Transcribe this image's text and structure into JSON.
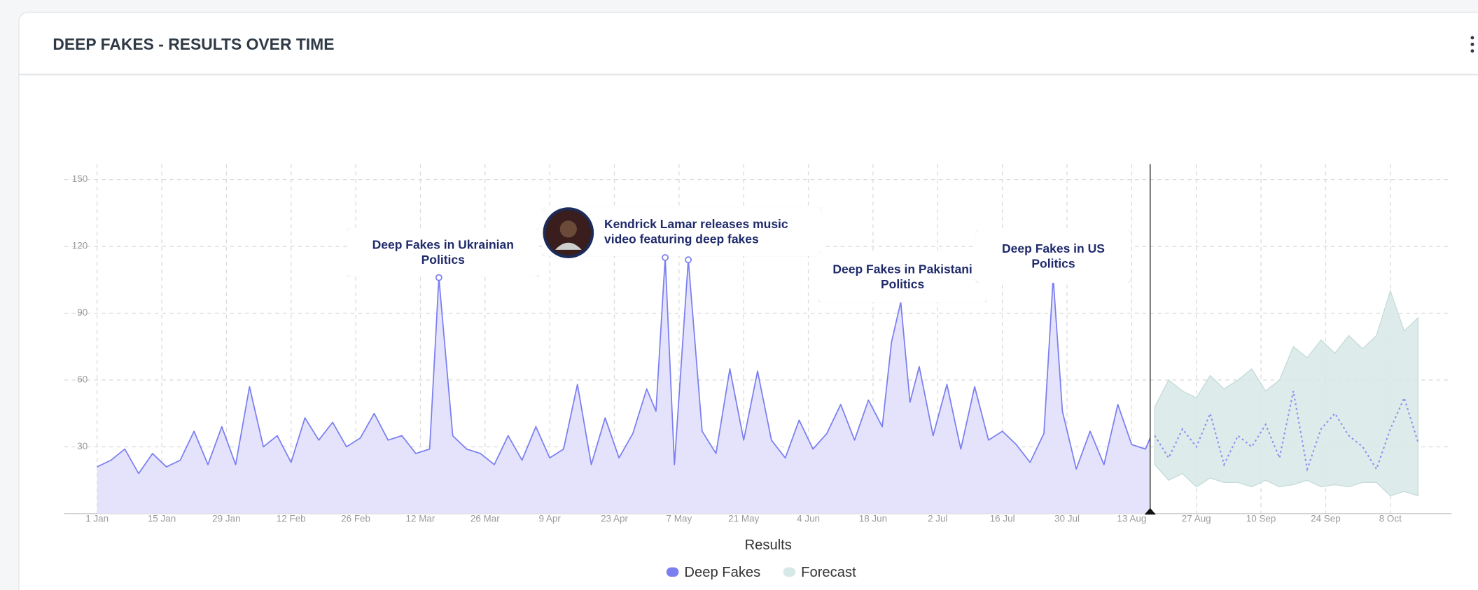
{
  "chart_data": {
    "type": "line",
    "title": "DEEP FAKES - RESULTS OVER TIME",
    "xlabel": "Results",
    "x": [
      "1 Jan",
      "4 Jan",
      "7 Jan",
      "10 Jan",
      "13 Jan",
      "16 Jan",
      "19 Jan",
      "22 Jan",
      "25 Jan",
      "28 Jan",
      "31 Jan",
      "3 Feb",
      "6 Feb",
      "9 Feb",
      "12 Feb",
      "15 Feb",
      "18 Feb",
      "21 Feb",
      "24 Feb",
      "27 Feb",
      "2 Mar",
      "5 Mar",
      "8 Mar",
      "11 Mar",
      "14 Mar",
      "16 Mar",
      "19 Mar",
      "22 Mar",
      "25 Mar",
      "28 Mar",
      "31 Mar",
      "3 Apr",
      "6 Apr",
      "9 Apr",
      "12 Apr",
      "15 Apr",
      "18 Apr",
      "21 Apr",
      "24 Apr",
      "27 Apr",
      "30 Apr",
      "2 May",
      "4 May",
      "6 May",
      "9 May",
      "12 May",
      "15 May",
      "18 May",
      "21 May",
      "24 May",
      "27 May",
      "30 May",
      "2 Jun",
      "5 Jun",
      "8 Jun",
      "11 Jun",
      "14 Jun",
      "17 Jun",
      "20 Jun",
      "22 Jun",
      "24 Jun",
      "26 Jun",
      "28 Jun",
      "1 Jul",
      "4 Jul",
      "7 Jul",
      "10 Jul",
      "13 Jul",
      "16 Jul",
      "19 Jul",
      "22 Jul",
      "25 Jul",
      "27 Jul",
      "29 Jul",
      "1 Aug",
      "4 Aug",
      "7 Aug",
      "10 Aug",
      "13 Aug",
      "16 Aug",
      "17 Aug"
    ],
    "series": [
      {
        "name": "Deep Fakes",
        "color": "#7b7ff0",
        "fill": "#e4e3fb",
        "values": [
          21,
          24,
          29,
          18,
          27,
          21,
          24,
          37,
          22,
          39,
          22,
          57,
          30,
          35,
          23,
          43,
          33,
          41,
          30,
          34,
          45,
          33,
          35,
          27,
          29,
          106,
          35,
          29,
          27,
          22,
          35,
          24,
          39,
          25,
          29,
          58,
          22,
          43,
          25,
          36,
          56,
          46,
          115,
          22,
          114,
          37,
          27,
          65,
          33,
          64,
          33,
          25,
          42,
          29,
          36,
          49,
          33,
          51,
          39,
          77,
          95,
          50,
          66,
          35,
          58,
          29,
          57,
          33,
          37,
          31,
          23,
          36,
          106,
          46,
          20,
          37,
          22,
          49,
          31,
          29,
          34
        ]
      },
      {
        "name": "Forecast",
        "color": "#d7e9e7",
        "line_color": "#8b8ff0",
        "x": [
          "18 Aug",
          "21 Aug",
          "24 Aug",
          "27 Aug",
          "30 Aug",
          "2 Sep",
          "5 Sep",
          "8 Sep",
          "11 Sep",
          "14 Sep",
          "17 Sep",
          "20 Sep",
          "23 Sep",
          "26 Sep",
          "29 Sep",
          "2 Oct",
          "5 Oct",
          "8 Oct",
          "11 Oct",
          "14 Oct"
        ],
        "values": [
          35,
          25,
          38,
          30,
          45,
          22,
          35,
          30,
          40,
          25,
          55,
          20,
          38,
          45,
          35,
          30,
          20,
          38,
          52,
          32
        ],
        "lower": [
          22,
          15,
          18,
          12,
          16,
          14,
          14,
          12,
          15,
          12,
          13,
          15,
          12,
          13,
          12,
          14,
          14,
          8,
          10,
          8
        ],
        "upper": [
          48,
          60,
          55,
          52,
          62,
          56,
          60,
          65,
          55,
          60,
          75,
          70,
          78,
          72,
          80,
          74,
          80,
          100,
          82,
          88
        ]
      }
    ],
    "ylim": [
      0,
      157
    ],
    "yticks": [
      30,
      60,
      90,
      120,
      150
    ],
    "xticks": [
      "1 Jan",
      "15 Jan",
      "29 Jan",
      "12 Feb",
      "26 Feb",
      "12 Mar",
      "26 Mar",
      "9 Apr",
      "23 Apr",
      "7 May",
      "21 May",
      "4 Jun",
      "18 Jun",
      "2 Jul",
      "16 Jul",
      "30 Jul",
      "13 Aug",
      "27 Aug",
      "10 Sep",
      "24 Sep",
      "8 Oct"
    ],
    "grid": true,
    "annotations": [
      "Deep Fakes in Ukrainian Politics",
      "Kendrick Lamar releases music video featuring deep fakes",
      "Deep Fakes in Pakistani Politics",
      "Deep Fakes in US Politics"
    ]
  }
}
